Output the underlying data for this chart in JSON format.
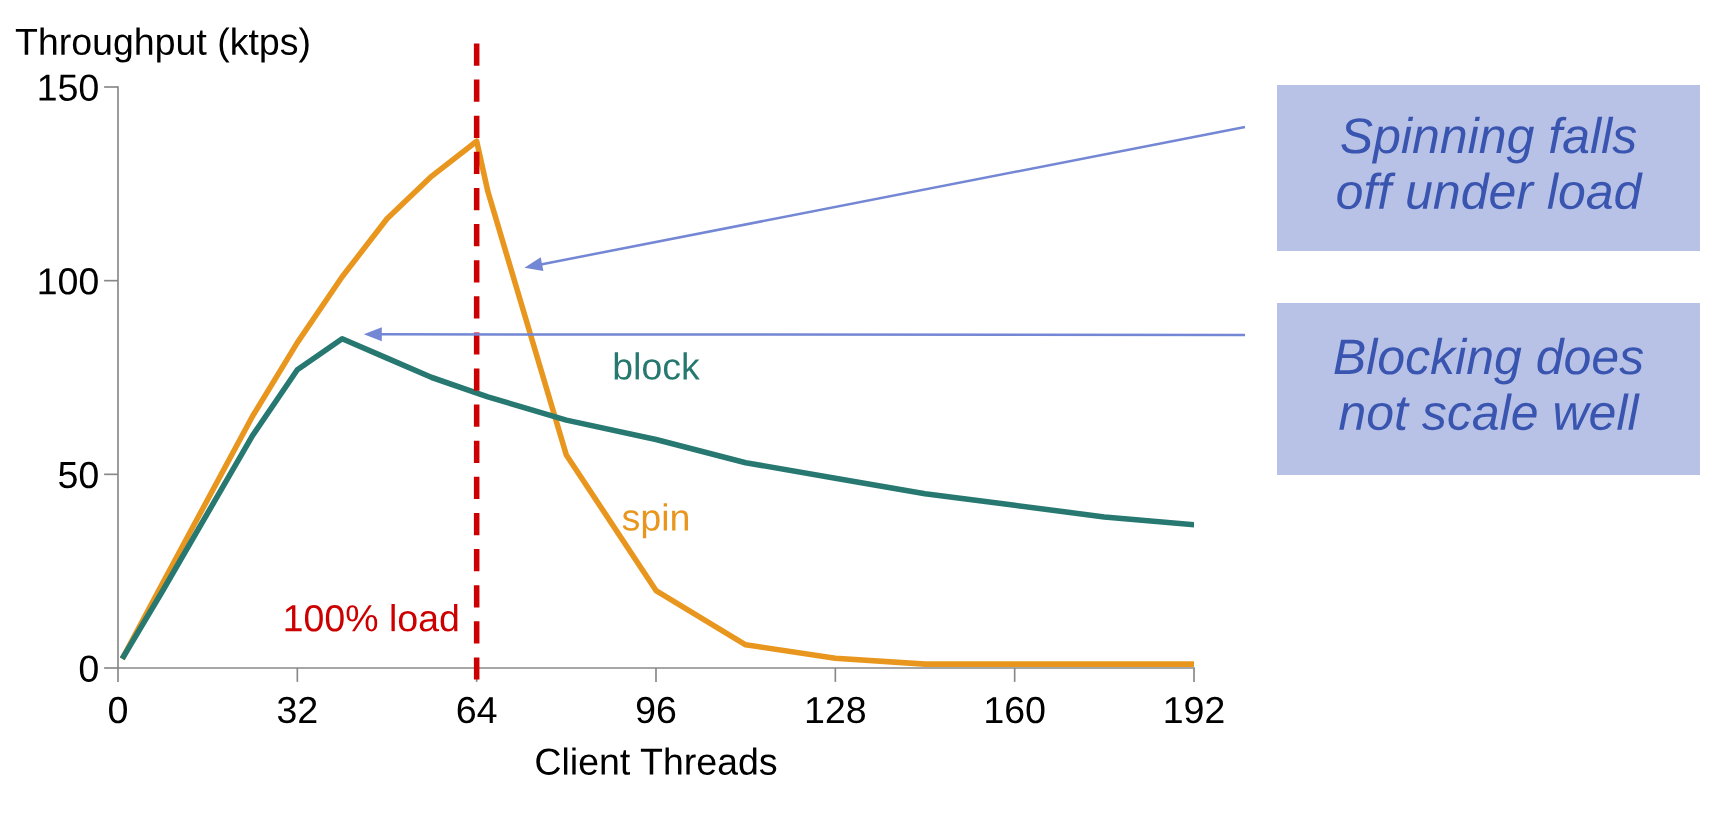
{
  "chart_data": {
    "type": "line",
    "ylabel": "Throughput (ktps)",
    "xlabel": "Client Threads",
    "xlim": [
      0,
      192
    ],
    "xticks": [
      0,
      32,
      64,
      96,
      128,
      160,
      192
    ],
    "ylim": [
      0,
      150
    ],
    "yticks": [
      0,
      50,
      100,
      150
    ],
    "grid": false,
    "legend": false,
    "marker": "none",
    "line_style": "solid",
    "series": [
      {
        "name": "spin",
        "color": "#e8961e",
        "x": [
          1,
          8,
          24,
          32,
          40,
          48,
          56,
          64,
          66,
          80,
          96,
          112,
          128,
          144,
          160,
          176,
          192
        ],
        "values": [
          3,
          22,
          65,
          84,
          101,
          116,
          127,
          136,
          123,
          55,
          20,
          6,
          2.5,
          1,
          1,
          1,
          1
        ]
      },
      {
        "name": "block",
        "color": "#267870",
        "x": [
          1,
          8,
          24,
          32,
          40,
          48,
          56,
          66,
          80,
          96,
          112,
          128,
          144,
          160,
          176,
          192
        ],
        "values": [
          3,
          20,
          60,
          77,
          85,
          80,
          75,
          70,
          64,
          59,
          53,
          49,
          45,
          42,
          39,
          37
        ]
      }
    ],
    "ref_lines": [
      {
        "axis": "x",
        "value": 64,
        "label": "100% load",
        "color": "#cc0000",
        "line_style": "dashed"
      }
    ],
    "annotations": [
      "Spinning falls off under load",
      "Blocking does not scale well"
    ]
  }
}
